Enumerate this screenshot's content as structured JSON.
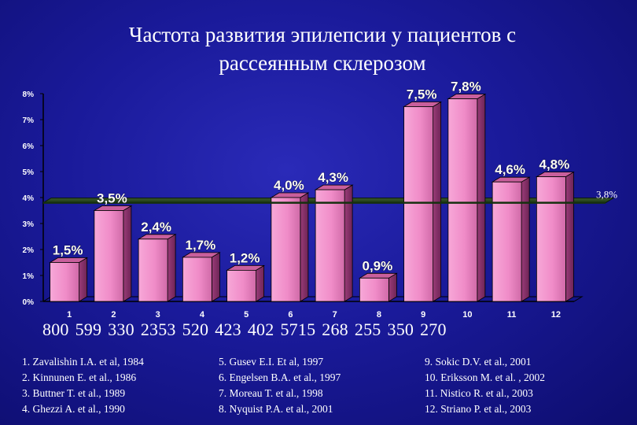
{
  "title": {
    "line1": "Частота развития эпилепсии у пациентов с",
    "line2": "рассеянным склерозом"
  },
  "chart_data": {
    "type": "bar",
    "categories": [
      "1",
      "2",
      "3",
      "4",
      "5",
      "6",
      "7",
      "8",
      "9",
      "10",
      "11",
      "12"
    ],
    "values": [
      1.5,
      3.5,
      2.4,
      1.7,
      1.2,
      4.0,
      4.3,
      0.9,
      7.5,
      7.8,
      4.6,
      4.8
    ],
    "value_labels": [
      "1,5%",
      "3,5%",
      "2,4%",
      "1,7%",
      "1,2%",
      "4,0%",
      "4,3%",
      "0,9%",
      "7,5%",
      "7,8%",
      "4,6%",
      "4,8%"
    ],
    "ylim": [
      0,
      8
    ],
    "yticks": [
      "0%",
      "1%",
      "2%",
      "3%",
      "4%",
      "5%",
      "6%",
      "7%",
      "8%"
    ],
    "reference_line": {
      "value": 3.8,
      "label": "3,8%"
    },
    "grid": false,
    "bar_color": "#f08cc8"
  },
  "sample_sizes": [
    "800",
    "599",
    "330",
    "2353",
    "520",
    "423",
    "402",
    "5715",
    "268",
    "255",
    "350",
    "270"
  ],
  "references": {
    "col1": [
      "1. Zavalishin I.A. et al, 1984",
      "2. Kinnunen E. et al., 1986",
      "3. Buttner T. et al., 1989",
      "4. Ghezzi A. et al., 1990"
    ],
    "col2": [
      "5. Gusev E.I. Et al, 1997",
      "6. Engelsen B.A. et al., 1997",
      "7. Moreau T. et al., 1998",
      "8. Nyquist P.A. et al., 2001"
    ],
    "col3": [
      "9. Sokic D.V. et al., 2001",
      "10. Eriksson M. et al. , 2002",
      "11. Nistico R. et al., 2003",
      "12. Striano P. et al., 2003"
    ]
  }
}
